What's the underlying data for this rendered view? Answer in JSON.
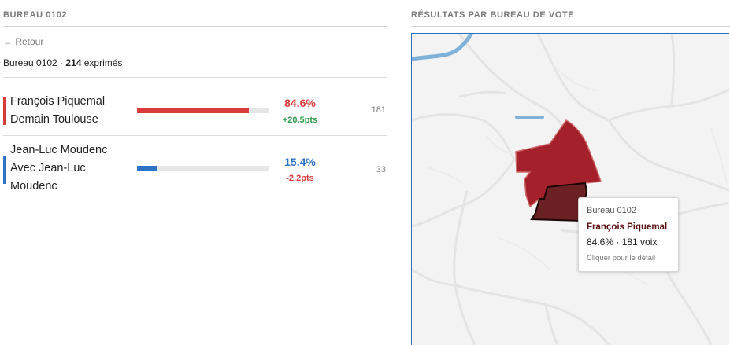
{
  "left": {
    "title": "BUREAU 0102",
    "back_link": "← Retour",
    "bureau_label": "Bureau 0102 · ",
    "exprimes_count": "214",
    "exprimes_label": " exprimés",
    "candidates": [
      {
        "line1": "François Piquemal",
        "line2": "Demain Toulouse",
        "line3": "",
        "percent": "84.6%",
        "percent_value": 84.6,
        "delta": "+20.5pts",
        "votes": "181",
        "color": "#d93b3b",
        "delta_color": "#2e9e4f"
      },
      {
        "line1": "Jean-Luc Moudenc",
        "line2": "Avec Jean-Luc",
        "line3": "Moudenc",
        "percent": "15.4%",
        "percent_value": 15.4,
        "delta": "-2.2pts",
        "votes": "33",
        "color": "#2f73c8",
        "delta_color": "#d93b3b"
      }
    ]
  },
  "right": {
    "title": "RÉSULTATS PAR BUREAU DE VOTE",
    "tooltip": {
      "bureau": "Bureau 0102",
      "candidate": "François Piquemal",
      "result": "84.6% · 181 voix",
      "hint": "Cliquer pour le détail"
    }
  }
}
